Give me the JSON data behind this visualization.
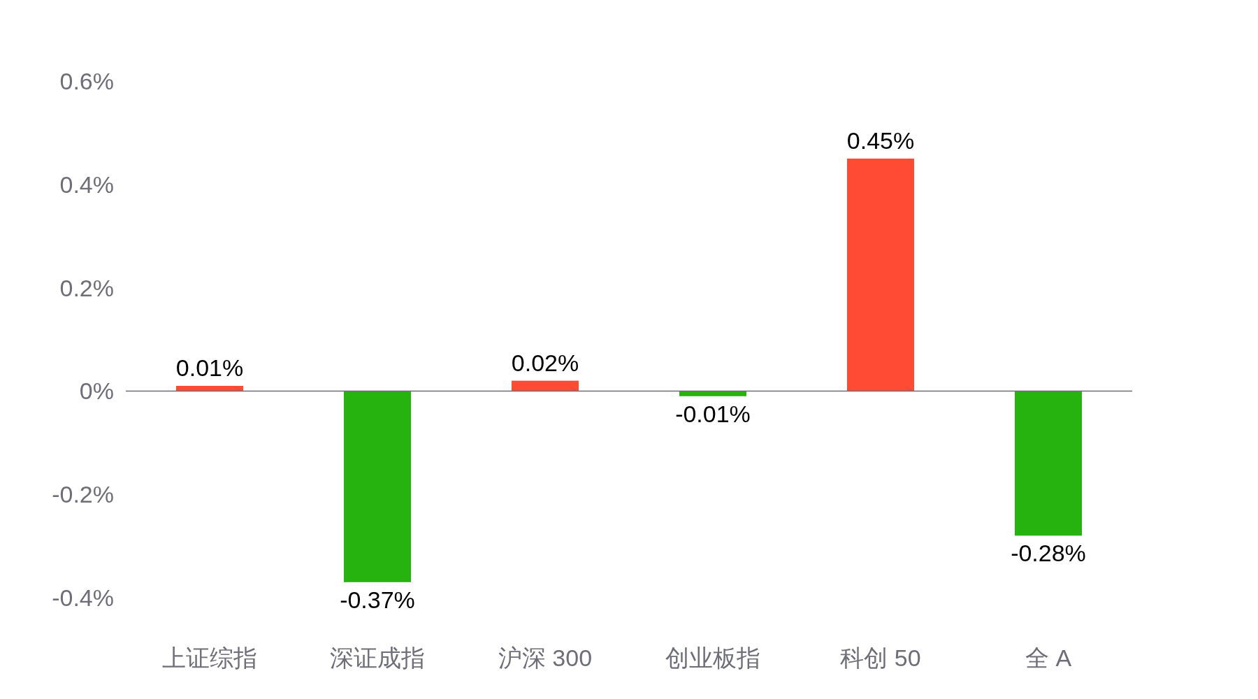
{
  "chart_data": {
    "type": "bar",
    "categories": [
      "上证综指",
      "深证成指",
      "沪深 300",
      "创业板指",
      "科创 50",
      "全 A"
    ],
    "values": [
      0.01,
      -0.37,
      0.02,
      -0.01,
      0.45,
      -0.28
    ],
    "colors": [
      "#ff4b33",
      "#27b30f",
      "#ff4b33",
      "#27b30f",
      "#ff4b33",
      "#27b30f"
    ],
    "value_labels": [
      "0.01%",
      "-0.37%",
      "0.02%",
      "-0.01%",
      "0.45%",
      "-0.28%"
    ],
    "ylim": [
      -0.4,
      0.6
    ],
    "yticks": [
      {
        "value": -0.4,
        "label": "-0.4%"
      },
      {
        "value": -0.2,
        "label": "-0.2%"
      },
      {
        "value": 0,
        "label": "0%"
      },
      {
        "value": 0.2,
        "label": "0.2%"
      },
      {
        "value": 0.4,
        "label": "0.4%"
      },
      {
        "value": 0.6,
        "label": "0.6%"
      }
    ]
  }
}
